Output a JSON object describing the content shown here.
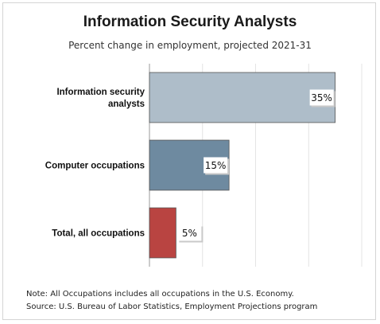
{
  "title": "Information Security Analysts",
  "subtitle": "Percent change in employment, projected 2021-31",
  "notes": {
    "note": "Note: All Occupations includes all occupations in the U.S. Economy.",
    "source": "Source: U.S. Bureau of Labor Statistics, Employment Projections program"
  },
  "chart_data": {
    "type": "bar",
    "orientation": "horizontal",
    "categories": [
      [
        "Information security",
        "analysts"
      ],
      [
        "Computer occupations"
      ],
      [
        "Total, all occupations"
      ]
    ],
    "values": [
      35,
      15,
      5
    ],
    "data_labels": [
      "35%",
      "15%",
      "5%"
    ],
    "colors": [
      "#aebdc9",
      "#6e8aa0",
      "#b94441"
    ],
    "xlim": [
      0,
      40
    ],
    "grid": true
  }
}
